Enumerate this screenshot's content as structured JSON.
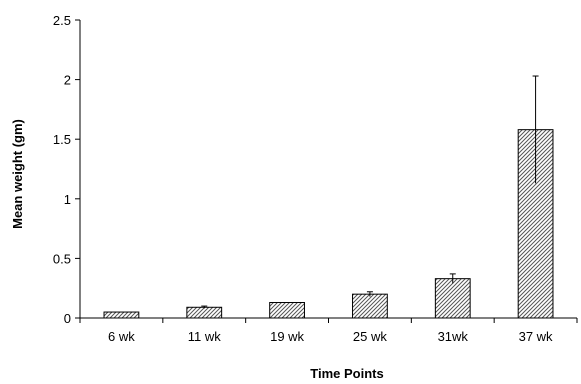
{
  "chart_data": {
    "type": "bar",
    "title": "",
    "xlabel": "Time Points",
    "ylabel": "Mean weight (gm)",
    "categories": [
      "6 wk",
      "11 wk",
      "19 wk",
      "25 wk",
      "31wk",
      "37 wk"
    ],
    "values": [
      0.05,
      0.09,
      0.13,
      0.2,
      0.33,
      1.58
    ],
    "error_upper": [
      0.0,
      0.01,
      0.0,
      0.02,
      0.04,
      0.45
    ],
    "error_lower": [
      0.0,
      0.01,
      0.0,
      0.02,
      0.04,
      0.45
    ],
    "ylim": [
      0,
      2.5
    ],
    "yticks": [
      0,
      0.5,
      1,
      1.5,
      2,
      2.5
    ],
    "ytick_labels": [
      "0",
      "0.5",
      "1",
      "1.5",
      "2",
      "2.5"
    ],
    "grid": false,
    "legend": "none",
    "bar_fill": "hatched diagonal",
    "colors": {
      "bar_stroke": "#000000",
      "hatch": "#555555",
      "axis": "#000000"
    }
  }
}
